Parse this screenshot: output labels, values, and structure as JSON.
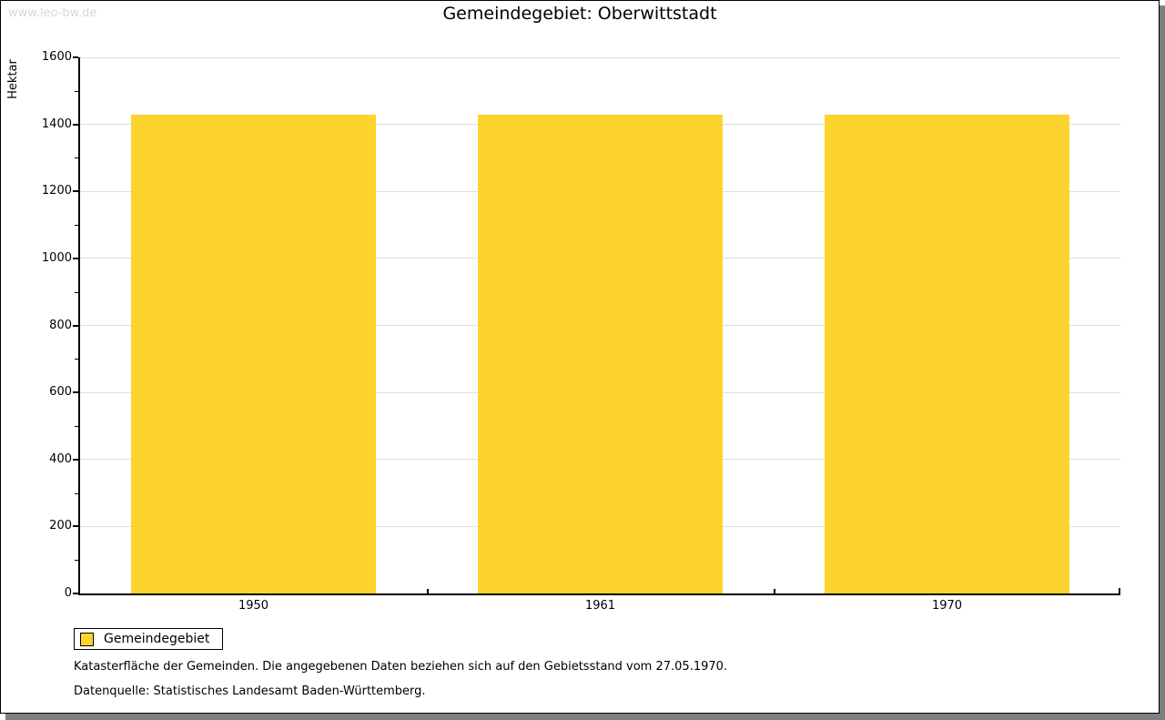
{
  "watermark": "www.leo-bw.de",
  "header": {
    "title": "Gemeindegebiet: Oberwittstadt"
  },
  "chart_data": {
    "type": "bar",
    "title": "Gemeindegebiet: Oberwittstadt",
    "categories": [
      "1950",
      "1961",
      "1970"
    ],
    "series": [
      {
        "name": "Gemeindegebiet",
        "values": [
          1430,
          1430,
          1430
        ]
      }
    ],
    "xlabel": "",
    "ylabel": "Hektar",
    "ylim": [
      0,
      1600
    ],
    "ytick_step": 200,
    "ytick_labels": [
      "0",
      "200",
      "400",
      "600",
      "800",
      "1000",
      "1200",
      "1400",
      "1600"
    ],
    "yminor_step": 100,
    "grid": "horizontal-major",
    "legend_position": "bottom-left",
    "bar_color": "#fcd42d"
  },
  "legend": {
    "items": [
      {
        "label": "Gemeindegebiet",
        "color": "#fcd42d"
      }
    ]
  },
  "footnotes": {
    "line1": "Katasterfläche der Gemeinden. Die angegebenen Daten beziehen sich auf den Gebietsstand vom 27.05.1970.",
    "line2": "Datenquelle: Statistisches Landesamt Baden-Württemberg."
  },
  "colors": {
    "bar": "#fcd42d",
    "gridline": "#dedede",
    "axis": "#000000",
    "watermark_text": "#d7d7d7",
    "window_shadow": "#7f7f7f",
    "background": "#ffffff"
  }
}
